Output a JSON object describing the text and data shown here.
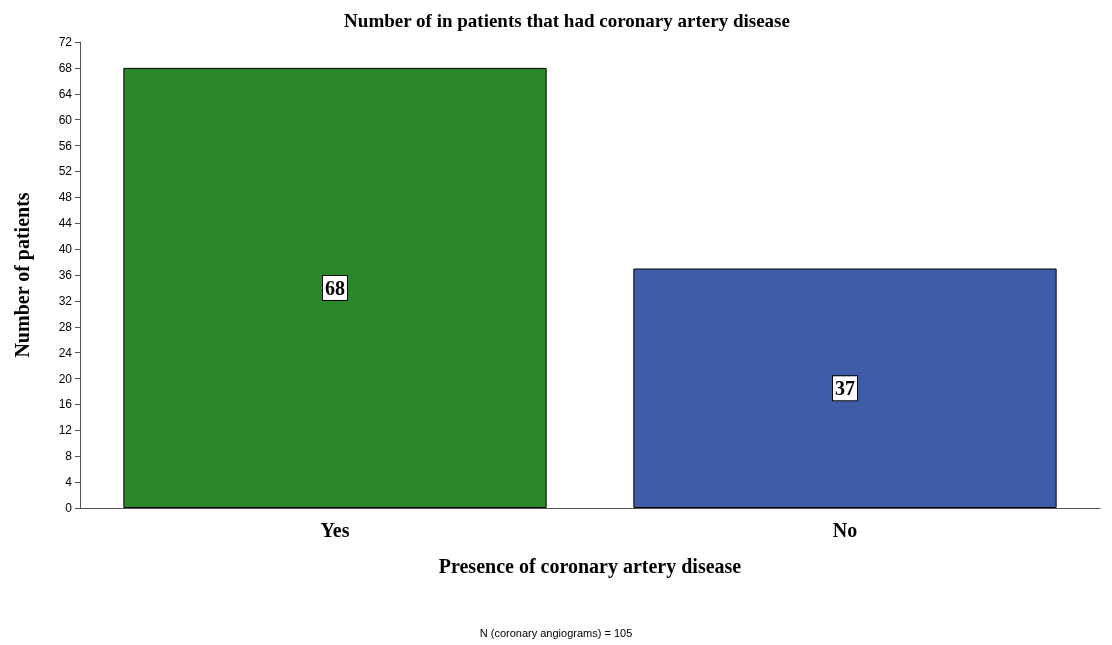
{
  "chart_data": {
    "type": "bar",
    "title": "Number of in patients that had coronary artery disease",
    "xlabel": "Presence of coronary artery disease",
    "ylabel": "Number of patients",
    "categories": [
      "Yes",
      "No"
    ],
    "values": [
      68,
      37
    ],
    "colors": [
      "#2a882a",
      "#3f5ca8"
    ],
    "ylim": [
      0,
      72
    ],
    "yticks": [
      0,
      4,
      8,
      12,
      16,
      20,
      24,
      28,
      32,
      36,
      40,
      44,
      48,
      52,
      56,
      60,
      64,
      68,
      72
    ],
    "grid": false,
    "data_labels": true,
    "annotations": [
      "N (coronary angiograms) = 105"
    ]
  }
}
